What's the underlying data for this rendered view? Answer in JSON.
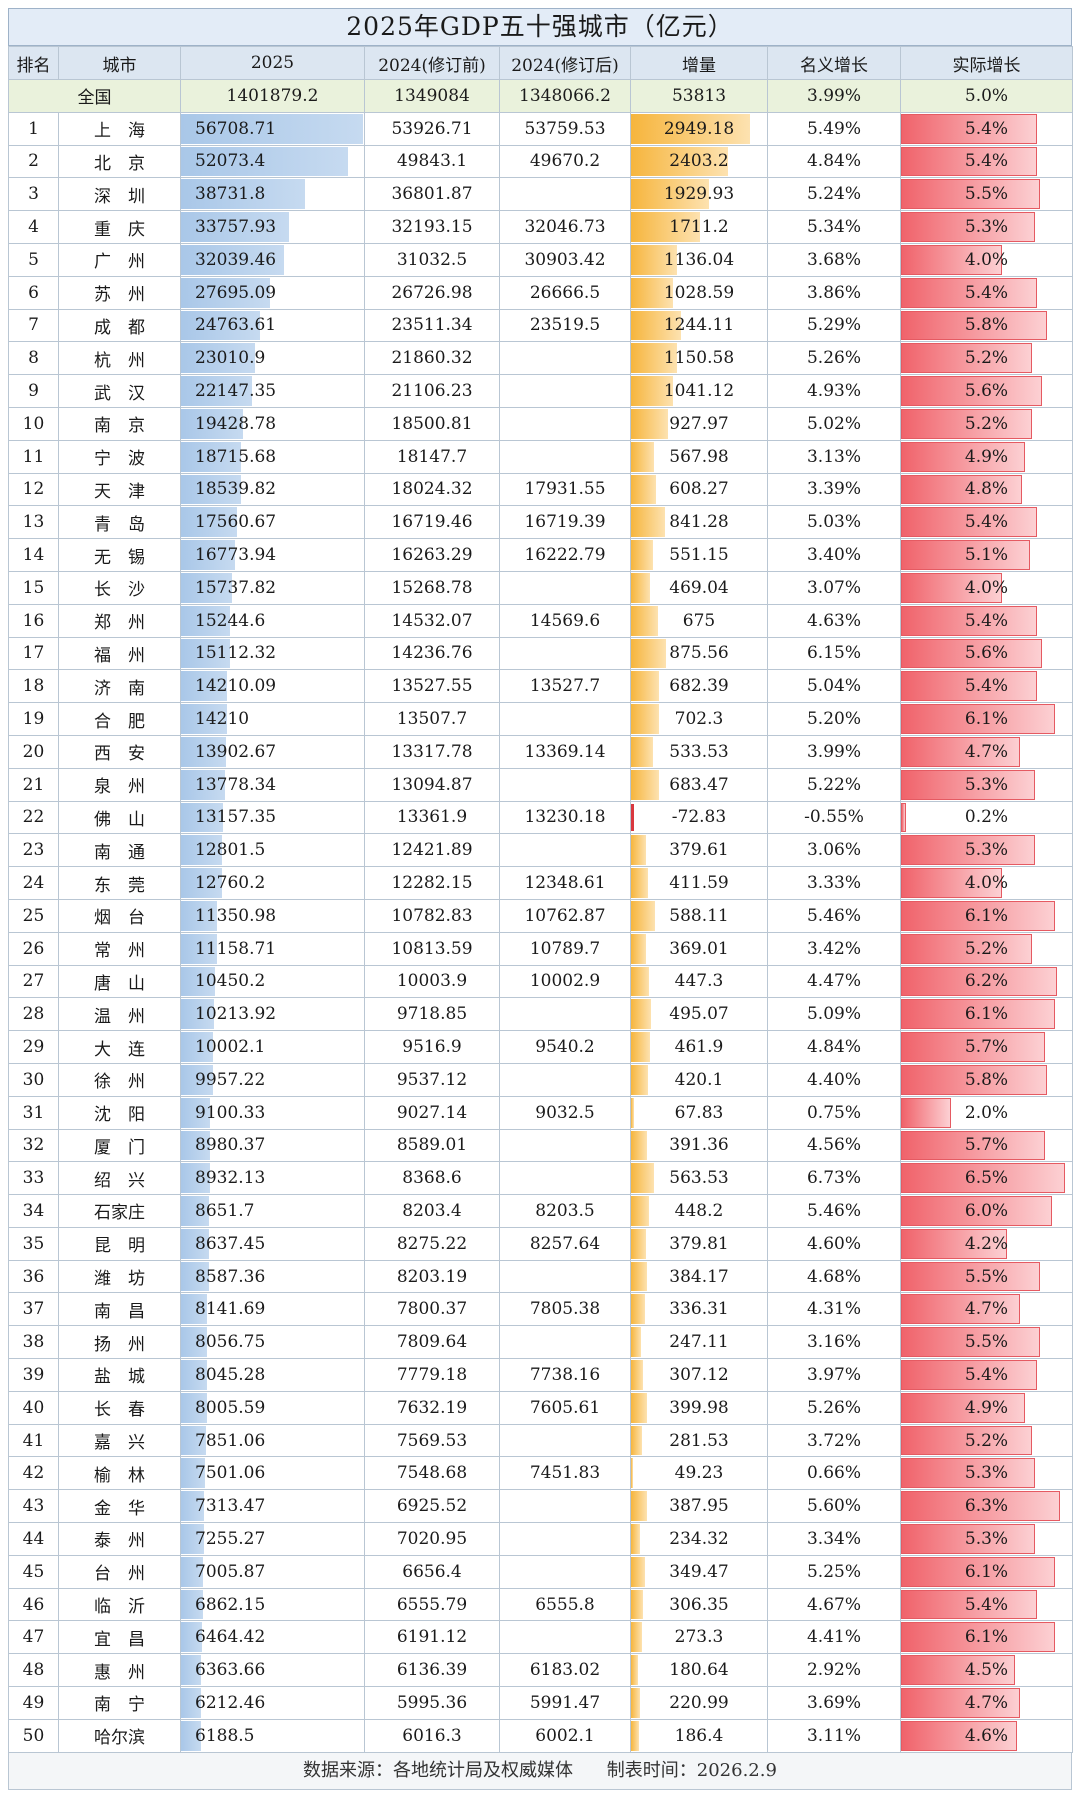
{
  "title": "2025年GDP五十强城市（亿元）",
  "headers": [
    "排名",
    "城市",
    "2025",
    "2024(修订前)",
    "2024(修订后)",
    "增量",
    "名义增长",
    "实际增长"
  ],
  "national": {
    "label": "全国",
    "gdp2025": "1401879.2",
    "before": "1349084",
    "after": "1348066.2",
    "inc": "53813",
    "nominal": "3.99%",
    "real": "5.0%"
  },
  "footer": {
    "source": "数据来源：各地统计局及权威媒体",
    "time": "制表时间：2026.2.9"
  },
  "colors": {
    "gdp_bar": "#a9c7e8",
    "inc_bar": "#f6b53d",
    "real_bar": "#f0636b",
    "header_bg": "#dce6f1",
    "national_bg": "#eaf2dc"
  },
  "chart_data": {
    "type": "table",
    "title": "2025年GDP五十强城市（亿元）",
    "columns": [
      "排名",
      "城市",
      "2025",
      "2024(修订前)",
      "2024(修订后)",
      "增量",
      "名义增长",
      "实际增长"
    ],
    "rows": [
      [
        "1",
        "上　海",
        "56708.71",
        "53926.71",
        "53759.53",
        "2949.18",
        "5.49%",
        "5.4%"
      ],
      [
        "2",
        "北　京",
        "52073.4",
        "49843.1",
        "49670.2",
        "2403.2",
        "4.84%",
        "5.4%"
      ],
      [
        "3",
        "深　圳",
        "38731.8",
        "36801.87",
        "",
        "1929.93",
        "5.24%",
        "5.5%"
      ],
      [
        "4",
        "重　庆",
        "33757.93",
        "32193.15",
        "32046.73",
        "1711.2",
        "5.34%",
        "5.3%"
      ],
      [
        "5",
        "广　州",
        "32039.46",
        "31032.5",
        "30903.42",
        "1136.04",
        "3.68%",
        "4.0%"
      ],
      [
        "6",
        "苏　州",
        "27695.09",
        "26726.98",
        "26666.5",
        "1028.59",
        "3.86%",
        "5.4%"
      ],
      [
        "7",
        "成　都",
        "24763.61",
        "23511.34",
        "23519.5",
        "1244.11",
        "5.29%",
        "5.8%"
      ],
      [
        "8",
        "杭　州",
        "23010.9",
        "21860.32",
        "",
        "1150.58",
        "5.26%",
        "5.2%"
      ],
      [
        "9",
        "武　汉",
        "22147.35",
        "21106.23",
        "",
        "1041.12",
        "4.93%",
        "5.6%"
      ],
      [
        "10",
        "南　京",
        "19428.78",
        "18500.81",
        "",
        "927.97",
        "5.02%",
        "5.2%"
      ],
      [
        "11",
        "宁　波",
        "18715.68",
        "18147.7",
        "",
        "567.98",
        "3.13%",
        "4.9%"
      ],
      [
        "12",
        "天　津",
        "18539.82",
        "18024.32",
        "17931.55",
        "608.27",
        "3.39%",
        "4.8%"
      ],
      [
        "13",
        "青　岛",
        "17560.67",
        "16719.46",
        "16719.39",
        "841.28",
        "5.03%",
        "5.4%"
      ],
      [
        "14",
        "无　锡",
        "16773.94",
        "16263.29",
        "16222.79",
        "551.15",
        "3.40%",
        "5.1%"
      ],
      [
        "15",
        "长　沙",
        "15737.82",
        "15268.78",
        "",
        "469.04",
        "3.07%",
        "4.0%"
      ],
      [
        "16",
        "郑　州",
        "15244.6",
        "14532.07",
        "14569.6",
        "675",
        "4.63%",
        "5.4%"
      ],
      [
        "17",
        "福　州",
        "15112.32",
        "14236.76",
        "",
        "875.56",
        "6.15%",
        "5.6%"
      ],
      [
        "18",
        "济　南",
        "14210.09",
        "13527.55",
        "13527.7",
        "682.39",
        "5.04%",
        "5.4%"
      ],
      [
        "19",
        "合　肥",
        "14210",
        "13507.7",
        "",
        "702.3",
        "5.20%",
        "6.1%"
      ],
      [
        "20",
        "西　安",
        "13902.67",
        "13317.78",
        "13369.14",
        "533.53",
        "3.99%",
        "4.7%"
      ],
      [
        "21",
        "泉　州",
        "13778.34",
        "13094.87",
        "",
        "683.47",
        "5.22%",
        "5.3%"
      ],
      [
        "22",
        "佛　山",
        "13157.35",
        "13361.9",
        "13230.18",
        "-72.83",
        "-0.55%",
        "0.2%"
      ],
      [
        "23",
        "南　通",
        "12801.5",
        "12421.89",
        "",
        "379.61",
        "3.06%",
        "5.3%"
      ],
      [
        "24",
        "东　莞",
        "12760.2",
        "12282.15",
        "12348.61",
        "411.59",
        "3.33%",
        "4.0%"
      ],
      [
        "25",
        "烟　台",
        "11350.98",
        "10782.83",
        "10762.87",
        "588.11",
        "5.46%",
        "6.1%"
      ],
      [
        "26",
        "常　州",
        "11158.71",
        "10813.59",
        "10789.7",
        "369.01",
        "3.42%",
        "5.2%"
      ],
      [
        "27",
        "唐　山",
        "10450.2",
        "10003.9",
        "10002.9",
        "447.3",
        "4.47%",
        "6.2%"
      ],
      [
        "28",
        "温　州",
        "10213.92",
        "9718.85",
        "",
        "495.07",
        "5.09%",
        "6.1%"
      ],
      [
        "29",
        "大　连",
        "10002.1",
        "9516.9",
        "9540.2",
        "461.9",
        "4.84%",
        "5.7%"
      ],
      [
        "30",
        "徐　州",
        "9957.22",
        "9537.12",
        "",
        "420.1",
        "4.40%",
        "5.8%"
      ],
      [
        "31",
        "沈　阳",
        "9100.33",
        "9027.14",
        "9032.5",
        "67.83",
        "0.75%",
        "2.0%"
      ],
      [
        "32",
        "厦　门",
        "8980.37",
        "8589.01",
        "",
        "391.36",
        "4.56%",
        "5.7%"
      ],
      [
        "33",
        "绍　兴",
        "8932.13",
        "8368.6",
        "",
        "563.53",
        "6.73%",
        "6.5%"
      ],
      [
        "34",
        "石家庄",
        "8651.7",
        "8203.4",
        "8203.5",
        "448.2",
        "5.46%",
        "6.0%"
      ],
      [
        "35",
        "昆　明",
        "8637.45",
        "8275.22",
        "8257.64",
        "379.81",
        "4.60%",
        "4.2%"
      ],
      [
        "36",
        "潍　坊",
        "8587.36",
        "8203.19",
        "",
        "384.17",
        "4.68%",
        "5.5%"
      ],
      [
        "37",
        "南　昌",
        "8141.69",
        "7800.37",
        "7805.38",
        "336.31",
        "4.31%",
        "4.7%"
      ],
      [
        "38",
        "扬　州",
        "8056.75",
        "7809.64",
        "",
        "247.11",
        "3.16%",
        "5.5%"
      ],
      [
        "39",
        "盐　城",
        "8045.28",
        "7779.18",
        "7738.16",
        "307.12",
        "3.97%",
        "5.4%"
      ],
      [
        "40",
        "长　春",
        "8005.59",
        "7632.19",
        "7605.61",
        "399.98",
        "5.26%",
        "4.9%"
      ],
      [
        "41",
        "嘉　兴",
        "7851.06",
        "7569.53",
        "",
        "281.53",
        "3.72%",
        "5.2%"
      ],
      [
        "42",
        "榆　林",
        "7501.06",
        "7548.68",
        "7451.83",
        "49.23",
        "0.66%",
        "5.3%"
      ],
      [
        "43",
        "金　华",
        "7313.47",
        "6925.52",
        "",
        "387.95",
        "5.60%",
        "6.3%"
      ],
      [
        "44",
        "泰　州",
        "7255.27",
        "7020.95",
        "",
        "234.32",
        "3.34%",
        "5.3%"
      ],
      [
        "45",
        "台　州",
        "7005.87",
        "6656.4",
        "",
        "349.47",
        "5.25%",
        "6.1%"
      ],
      [
        "46",
        "临　沂",
        "6862.15",
        "6555.79",
        "6555.8",
        "306.35",
        "4.67%",
        "5.4%"
      ],
      [
        "47",
        "宜　昌",
        "6464.42",
        "6191.12",
        "",
        "273.3",
        "4.41%",
        "6.1%"
      ],
      [
        "48",
        "惠　州",
        "6363.66",
        "6136.39",
        "6183.02",
        "180.64",
        "2.92%",
        "4.5%"
      ],
      [
        "49",
        "南　宁",
        "6212.46",
        "5995.36",
        "5991.47",
        "220.99",
        "3.69%",
        "4.7%"
      ],
      [
        "50",
        "哈尔滨",
        "6188.5",
        "6016.3",
        "6002.1",
        "186.4",
        "3.11%",
        "4.6%"
      ]
    ]
  }
}
